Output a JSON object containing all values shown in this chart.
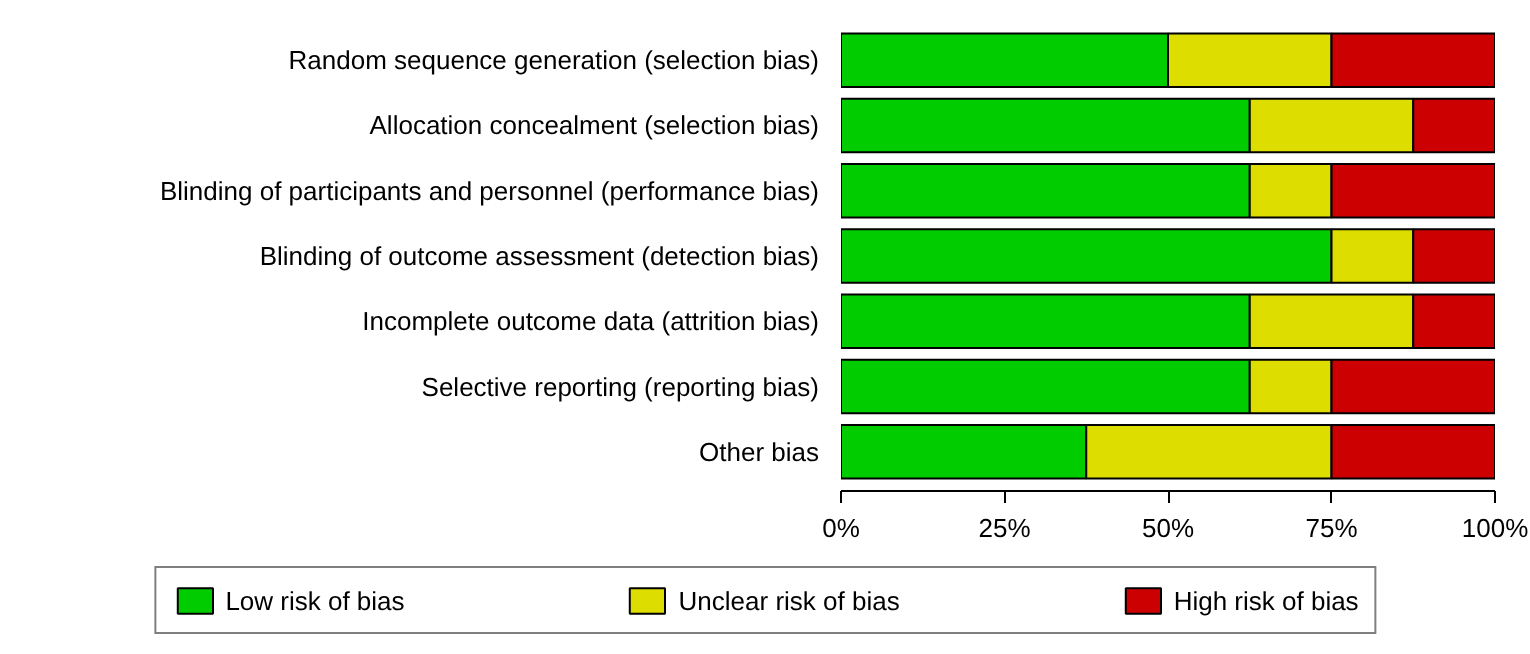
{
  "chart_data": {
    "type": "bar",
    "orientation": "horizontal",
    "stacked": true,
    "categories": [
      "Random sequence generation (selection bias)",
      "Allocation concealment (selection bias)",
      "Blinding of participants and personnel (performance bias)",
      "Blinding of outcome assessment (detection bias)",
      "Incomplete outcome data (attrition bias)",
      "Selective reporting (reporting bias)",
      "Other bias"
    ],
    "series": [
      {
        "name": "Low risk of bias",
        "color": "#00cc00",
        "values": [
          50,
          62.5,
          62.5,
          75,
          62.5,
          62.5,
          37.5
        ]
      },
      {
        "name": "Unclear risk of bias",
        "color": "#dddd00",
        "values": [
          25,
          25,
          12.5,
          12.5,
          25,
          12.5,
          37.5
        ]
      },
      {
        "name": "High risk of bias",
        "color": "#cc0000",
        "values": [
          25,
          12.5,
          25,
          12.5,
          12.5,
          25,
          25
        ]
      }
    ],
    "xlim": [
      0,
      100
    ],
    "xticks": [
      {
        "value": 0,
        "label": "0%"
      },
      {
        "value": 25,
        "label": "25%"
      },
      {
        "value": 50,
        "label": "50%"
      },
      {
        "value": 75,
        "label": "75%"
      },
      {
        "value": 100,
        "label": "100%"
      }
    ],
    "grid": false,
    "legend": "bottom"
  }
}
